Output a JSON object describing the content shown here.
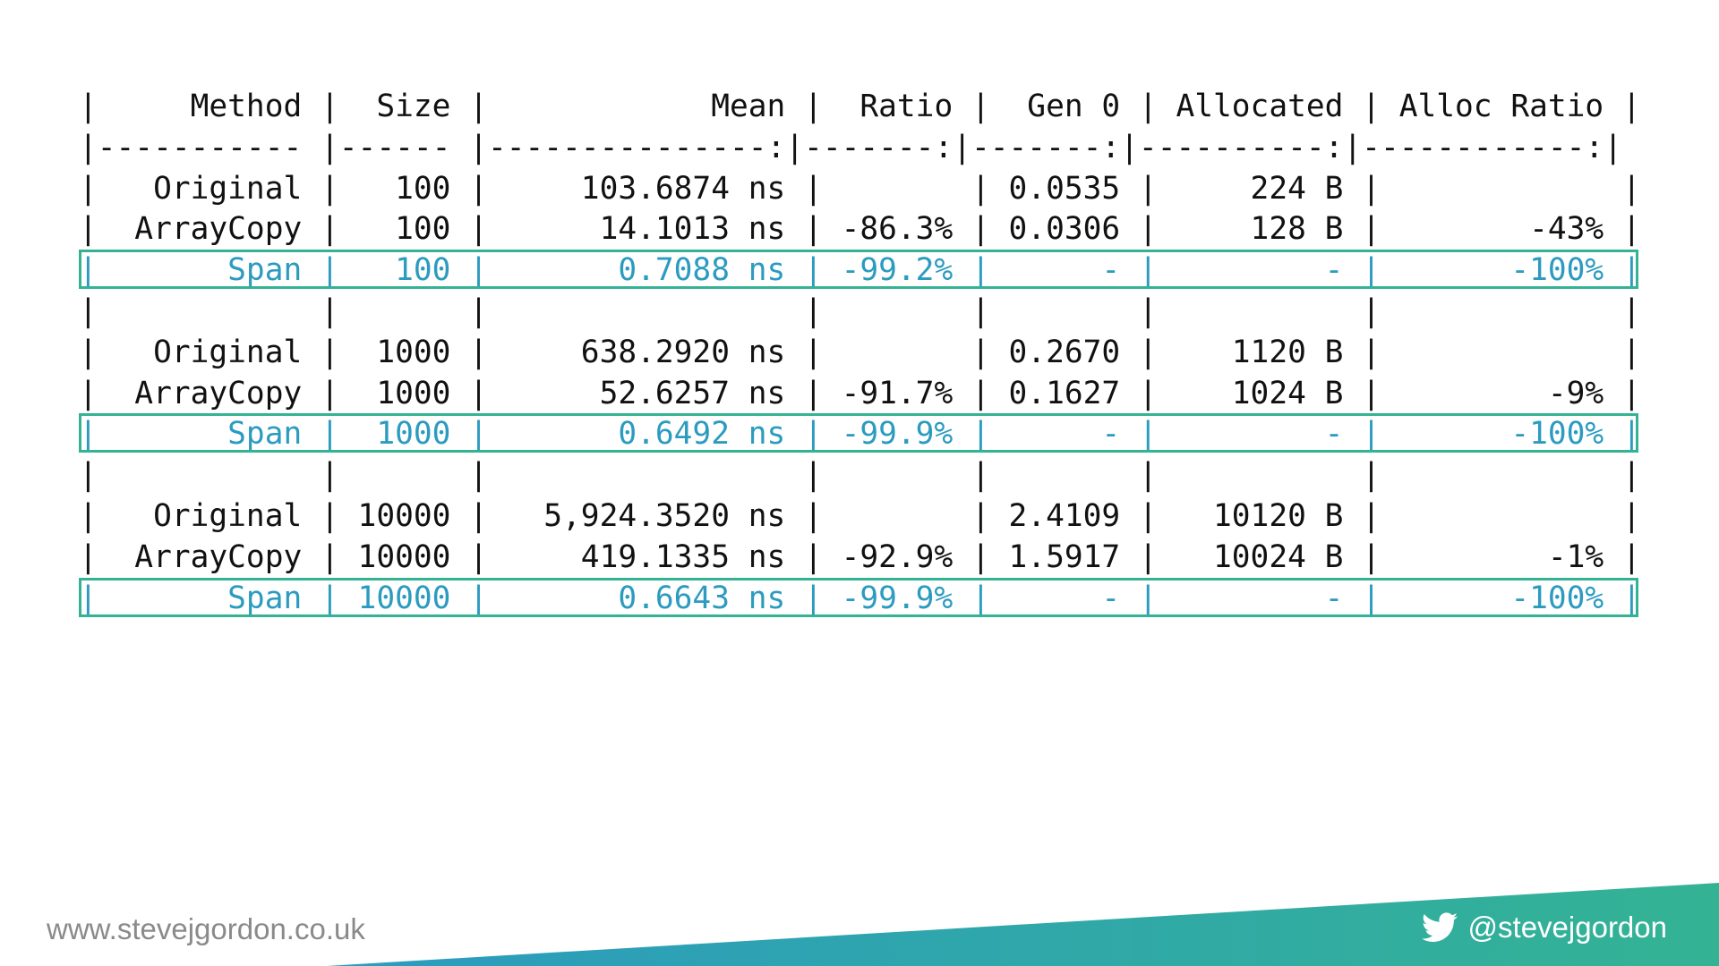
{
  "table": {
    "header": "|     Method |  Size |            Mean |  Ratio |  Gen 0 | Allocated | Alloc Ratio |",
    "separator": "|----------- |------ |---------------:|-------:|-------:|----------:|------------:|",
    "rows": [
      {
        "text": "|   Original |   100 |     103.6874 ns |        | 0.0535 |     224 B |             |",
        "highlight": false
      },
      {
        "text": "|  ArrayCopy |   100 |      14.1013 ns | -86.3% | 0.0306 |     128 B |        -43% |",
        "highlight": false
      },
      {
        "text": "|       Span |   100 |       0.7088 ns | -99.2% |      - |         - |       -100% |",
        "highlight": true
      },
      {
        "text": "|            |       |                 |        |        |           |             |",
        "highlight": false
      },
      {
        "text": "|   Original |  1000 |     638.2920 ns |        | 0.2670 |    1120 B |             |",
        "highlight": false
      },
      {
        "text": "|  ArrayCopy |  1000 |      52.6257 ns | -91.7% | 0.1627 |    1024 B |         -9% |",
        "highlight": false
      },
      {
        "text": "|       Span |  1000 |       0.6492 ns | -99.9% |      - |         - |       -100% |",
        "highlight": true
      },
      {
        "text": "|            |       |                 |        |        |           |             |",
        "highlight": false
      },
      {
        "text": "|   Original | 10000 |   5,924.3520 ns |        | 2.4109 |   10120 B |             |",
        "highlight": false
      },
      {
        "text": "|  ArrayCopy | 10000 |     419.1335 ns | -92.9% | 1.5917 |   10024 B |         -1% |",
        "highlight": false
      },
      {
        "text": "|       Span | 10000 |       0.6643 ns | -99.9% |      - |         - |       -100% |",
        "highlight": true
      }
    ]
  },
  "footer": {
    "url": "www.stevejgordon.co.uk",
    "twitter_handle": "@stevejgordon",
    "twitter_icon": "twitter-bird-icon"
  },
  "colors": {
    "highlight_text": "#2b9bc0",
    "highlight_border": "#34b394",
    "band_start": "#2b9bc0",
    "band_end": "#34b394"
  }
}
